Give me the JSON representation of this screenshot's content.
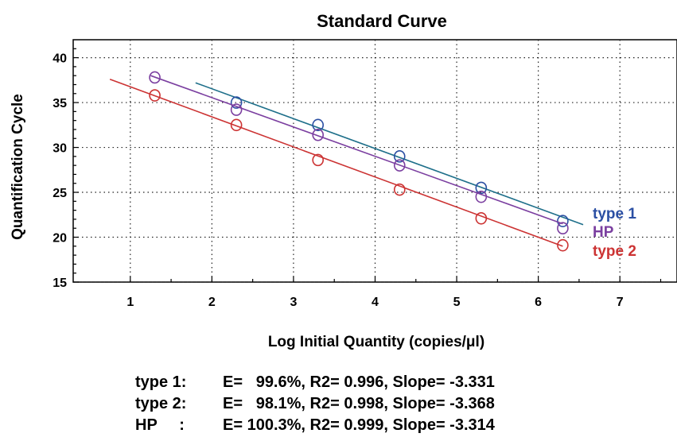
{
  "chart_data": {
    "type": "scatter",
    "title": "Standard Curve",
    "xlabel": "Log Initial Quantity (copies/μl)",
    "ylabel": "Quantification Cycle",
    "xlim": [
      0.3,
      7.7
    ],
    "ylim": [
      15,
      42
    ],
    "xticks": [
      "1",
      "2",
      "3",
      "4",
      "5",
      "6",
      "7"
    ],
    "yticks": [
      "15",
      "20",
      "25",
      "30",
      "35",
      "40"
    ],
    "grid": true,
    "legend_position": "right",
    "series": [
      {
        "name": "type 1",
        "color": "#2b4fa3",
        "line_color": "#1e6f8a",
        "x": [
          2.3,
          3.3,
          4.3,
          5.3,
          6.3
        ],
        "y": [
          35.0,
          32.5,
          29.0,
          25.5,
          21.8
        ],
        "fit_x": [
          1.8,
          6.55
        ],
        "fit_y": [
          37.2,
          21.4
        ]
      },
      {
        "name": "HP",
        "color": "#7b3fa0",
        "line_color": "#7b3fa0",
        "x": [
          1.3,
          2.3,
          3.3,
          4.3,
          5.3,
          6.3
        ],
        "y": [
          37.8,
          34.2,
          31.4,
          28.0,
          24.5,
          21.0
        ],
        "fit_x": [
          1.25,
          6.3
        ],
        "fit_y": [
          38.0,
          21.5
        ]
      },
      {
        "name": "type 2",
        "color": "#cc3333",
        "line_color": "#cc3333",
        "x": [
          1.3,
          2.3,
          3.3,
          4.3,
          5.3,
          6.3
        ],
        "y": [
          35.8,
          32.5,
          28.6,
          25.3,
          22.1,
          19.1
        ],
        "fit_x": [
          0.75,
          6.3
        ],
        "fit_y": [
          37.6,
          19.0
        ]
      }
    ]
  },
  "stats": [
    {
      "name": "type 1:",
      "text": "E=   99.6%, R2= 0.996, Slope= -3.331"
    },
    {
      "name": "type 2:",
      "text": "E=   98.1%, R2= 0.998, Slope= -3.368"
    },
    {
      "name": "HP     :",
      "text": "E= 100.3%, R2= 0.999, Slope= -3.314"
    }
  ]
}
